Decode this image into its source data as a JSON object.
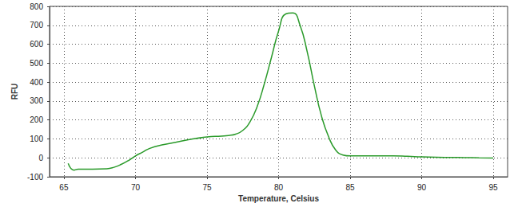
{
  "chart_data": {
    "type": "line",
    "x_label": "Temperature, Celsius",
    "y_label": "RFU",
    "x": [
      65.3,
      65.7,
      66,
      67,
      68,
      68.5,
      69,
      69.5,
      70,
      70.5,
      71,
      72,
      73,
      74,
      75,
      76,
      76.5,
      77,
      77.5,
      78,
      78.5,
      79,
      79.5,
      80,
      80.5,
      81,
      81.5,
      82,
      82.5,
      83,
      83.5,
      84,
      84.5,
      85,
      86,
      87,
      88,
      89,
      90,
      91,
      92,
      93,
      94,
      95
    ],
    "values": [
      -30,
      -65,
      -60,
      -60,
      -58,
      -50,
      -35,
      -15,
      10,
      30,
      50,
      70,
      85,
      100,
      110,
      115,
      118,
      125,
      145,
      190,
      270,
      390,
      530,
      670,
      760,
      765,
      700,
      560,
      380,
      220,
      110,
      40,
      15,
      10,
      10,
      10,
      10,
      8,
      5,
      3,
      2,
      1,
      0,
      -1
    ],
    "color": "#2a9a2a",
    "xlim": [
      64,
      96
    ],
    "xticks": [
      65,
      70,
      75,
      80,
      85,
      90,
      95
    ],
    "ylim": [
      -100,
      800
    ],
    "yticks": [
      -100,
      0,
      100,
      200,
      300,
      400,
      500,
      600,
      700,
      800
    ],
    "grid": true,
    "line_style": "solid"
  }
}
